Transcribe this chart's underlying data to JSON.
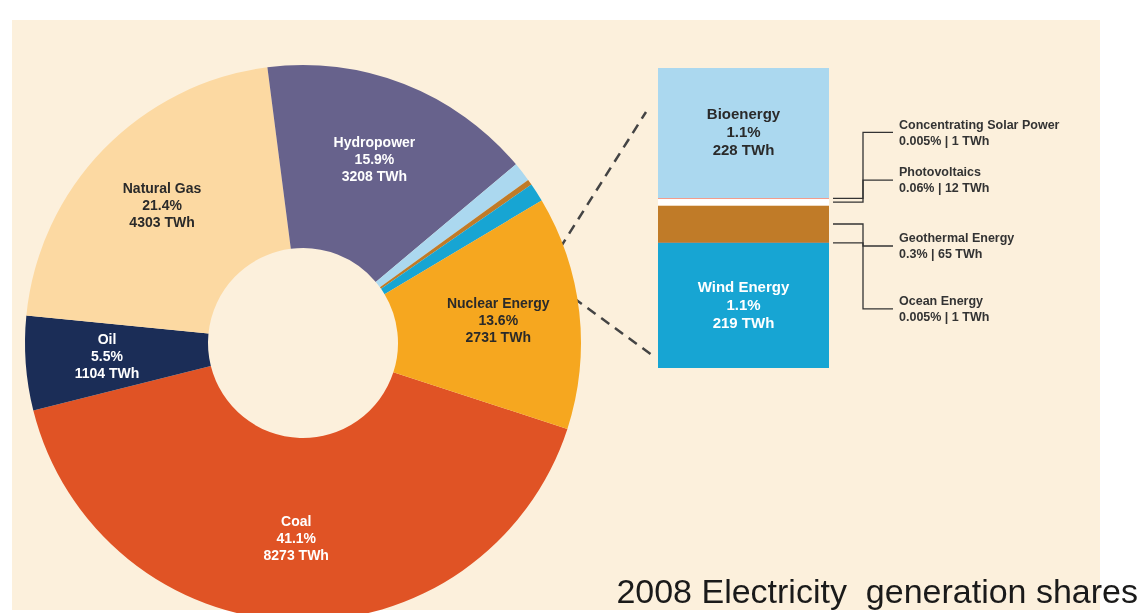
{
  "chart_data": [
    {
      "type": "donut",
      "title": "2008 Electricity  generation shares",
      "categories": [
        "Coal",
        "Oil",
        "Natural Gas",
        "Hydropower",
        null,
        null,
        null,
        "Nuclear Energy"
      ],
      "values": [
        8273,
        1104,
        4303,
        3208,
        228,
        65,
        219,
        2731
      ],
      "colors": [
        "#e05325",
        "#1b2d57",
        "#fcd9a2",
        "#67628c",
        "#abd8ef",
        "#c07b28",
        "#17a5d3",
        "#f6a71f"
      ],
      "value_labels": [
        "41.1%\n8273 TWh",
        "5.5%\n1104 TWh",
        "21.4%\n4303 TWh",
        "15.9%\n3208 TWh",
        null,
        null,
        null,
        "13.6%\n2731 TWh"
      ],
      "legend": false
    },
    {
      "type": "bar",
      "stacked": true,
      "categories": [
        null
      ],
      "legend": false,
      "series": [
        {
          "name": "Wind Energy",
          "color": "#17a5d3",
          "values": [
            219
          ],
          "value_labels": [
            "1.1%\n219 TWh"
          ]
        },
        {
          "name": "Ocean Energy",
          "color": "#2b3a55",
          "values": [
            1
          ],
          "value_labels": [
            "0.005%  | 1 TWh"
          ]
        },
        {
          "name": "Geothermal Energy",
          "color": "#c07b28",
          "values": [
            65
          ],
          "value_labels": [
            "0.3% | 65 TWh"
          ]
        },
        {
          "name": "Photovoltaics",
          "color": "#ffffff",
          "values": [
            12
          ],
          "value_labels": [
            "0.06% | 12 TWh"
          ]
        },
        {
          "name": "Concentrating Solar Power",
          "color": "#e8432a",
          "values": [
            1
          ],
          "value_labels": [
            "0.005% | 1 TWh"
          ]
        },
        {
          "name": "Bioenergy",
          "color": "#abd8ef",
          "values": [
            228
          ],
          "value_labels": [
            "1.1%\n228 TWh"
          ]
        }
      ]
    }
  ]
}
